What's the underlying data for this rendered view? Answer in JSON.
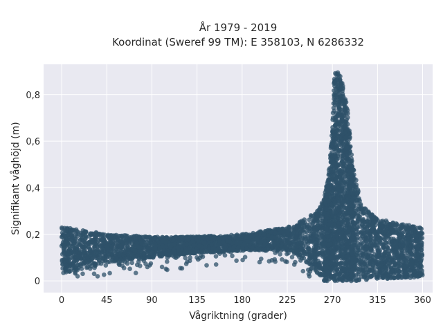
{
  "chart_data": {
    "type": "scatter",
    "title_lines": [
      "År 1979 - 2019",
      "Koordinat (Sweref 99 TM): E 358103, N 6286332"
    ],
    "xlabel": "Vågriktning (grader)",
    "ylabel": "Signifikant våghöjd (m)",
    "xlim": [
      -18,
      370
    ],
    "ylim": [
      -0.05,
      0.93
    ],
    "x_ticks": [
      0,
      45,
      90,
      135,
      180,
      225,
      270,
      315,
      360
    ],
    "y_ticks": [
      0,
      0.2,
      0.4,
      0.6,
      0.8
    ],
    "y_tick_labels": [
      "0",
      "0,2",
      "0,4",
      "0,6",
      "0,8"
    ],
    "grid": true,
    "legend": "none",
    "marker_color": "#2f5269",
    "background_color": "#e9e9f1",
    "distribution_envelope": {
      "x": [
        0,
        20,
        45,
        90,
        135,
        180,
        225,
        240,
        255,
        262,
        266,
        270,
        272,
        275,
        278,
        282,
        285,
        290,
        300,
        315,
        330,
        345,
        360
      ],
      "y_low": [
        0.03,
        0.05,
        0.08,
        0.1,
        0.12,
        0.13,
        0.13,
        0.1,
        0.03,
        0.0,
        0.0,
        0.0,
        0.0,
        0.0,
        0.0,
        0.0,
        0.0,
        0.0,
        0.0,
        0.01,
        0.01,
        0.01,
        0.02
      ],
      "y_high": [
        0.23,
        0.22,
        0.2,
        0.19,
        0.19,
        0.2,
        0.23,
        0.26,
        0.3,
        0.36,
        0.45,
        0.65,
        0.89,
        0.9,
        0.88,
        0.82,
        0.75,
        0.5,
        0.32,
        0.27,
        0.25,
        0.24,
        0.23
      ]
    }
  }
}
